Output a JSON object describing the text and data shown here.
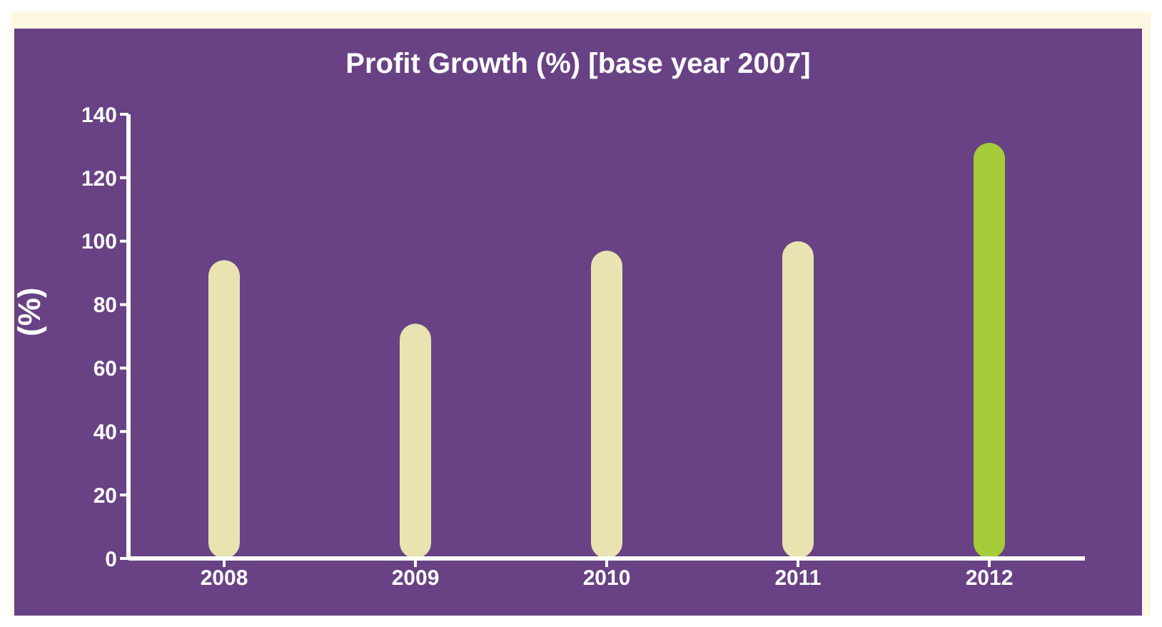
{
  "chart_data": {
    "type": "bar",
    "title": "Profit Growth (%) [base year 2007]",
    "ylabel": "(%)",
    "categories": [
      "2008",
      "2009",
      "2010",
      "2011",
      "2012"
    ],
    "values": [
      94,
      74,
      97,
      100,
      131
    ],
    "colors": [
      "#e8e3b0",
      "#e8e3b0",
      "#e8e3b0",
      "#e8e3b0",
      "#a6cc3a"
    ],
    "ylim": [
      0,
      140
    ],
    "yticks": [
      0,
      20,
      40,
      60,
      80,
      100,
      120,
      140
    ],
    "grid": false,
    "legend": false
  }
}
